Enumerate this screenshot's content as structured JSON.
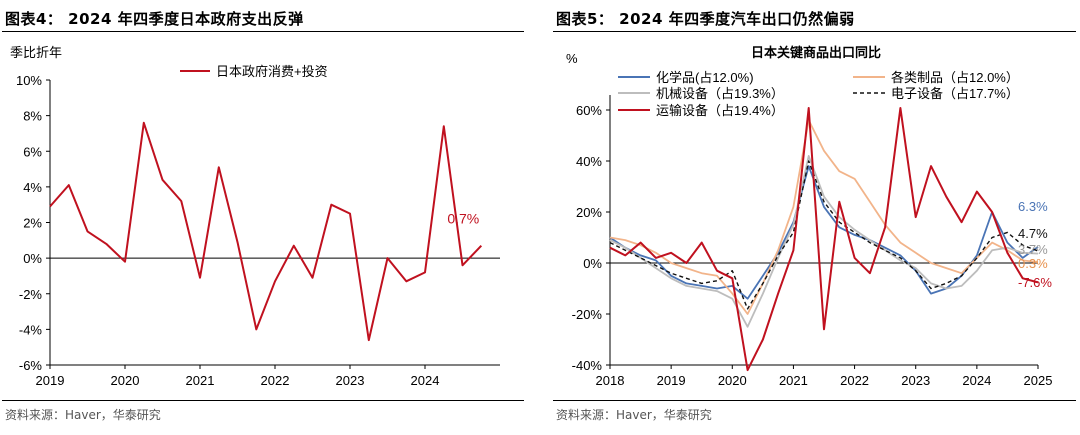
{
  "left": {
    "title": "图表4： 2024 年四季度日本政府支出反弹",
    "source": "资料来源：Haver，华泰研究",
    "chart_data": {
      "type": "line",
      "ylabel": "季比折年",
      "ylim": [
        -6,
        10
      ],
      "yticks": [
        "-6%",
        "-4%",
        "-2%",
        "0%",
        "2%",
        "4%",
        "6%",
        "8%",
        "10%"
      ],
      "xlim": [
        2019,
        2025
      ],
      "xticks": [
        "2019",
        "2020",
        "2021",
        "2022",
        "2023",
        "2024"
      ],
      "legend_position": "top-center",
      "annotation": "0.7%",
      "series": [
        {
          "name": "日本政府消费+投资",
          "color": "#c0111f",
          "x": [
            2019.0,
            2019.25,
            2019.5,
            2019.75,
            2020.0,
            2020.25,
            2020.5,
            2020.75,
            2021.0,
            2021.25,
            2021.5,
            2021.75,
            2022.0,
            2022.25,
            2022.5,
            2022.75,
            2023.0,
            2023.25,
            2023.5,
            2023.75,
            2024.0,
            2024.25,
            2024.5,
            2024.75
          ],
          "values": [
            2.9,
            4.1,
            1.5,
            0.8,
            -0.2,
            7.6,
            4.4,
            3.2,
            -1.1,
            5.1,
            0.9,
            -4.0,
            -1.3,
            0.7,
            -1.1,
            3.0,
            2.5,
            -4.6,
            0.0,
            -1.3,
            -0.8,
            7.4,
            -0.4,
            0.7
          ]
        }
      ]
    }
  },
  "right": {
    "title": "图表5： 2024 年四季度汽车出口仍然偏弱",
    "source": "资料来源：Haver，华泰研究",
    "chart_data": {
      "type": "line",
      "title": "日本关键商品出口同比",
      "ylabel": "%",
      "ylim": [
        -40,
        60
      ],
      "yticks": [
        "-40%",
        "-20%",
        "0%",
        "20%",
        "40%",
        "60%"
      ],
      "xlim": [
        2018,
        2025
      ],
      "xticks": [
        "2018",
        "2019",
        "2020",
        "2021",
        "2022",
        "2023",
        "2024",
        "2025"
      ],
      "legend_position": "top",
      "end_labels": [
        "6.3%",
        "4.7%",
        "3.7%",
        "0.3%",
        "-7.6%"
      ],
      "series": [
        {
          "name": "化学品(占12.0%)",
          "color": "#4a74b5",
          "x": [
            2018.0,
            2018.25,
            2018.5,
            2018.75,
            2019.0,
            2019.25,
            2019.5,
            2019.75,
            2020.0,
            2020.25,
            2020.5,
            2020.75,
            2021.0,
            2021.25,
            2021.5,
            2021.75,
            2022.0,
            2022.25,
            2022.5,
            2022.75,
            2023.0,
            2023.25,
            2023.5,
            2023.75,
            2024.0,
            2024.25,
            2024.5,
            2024.75,
            2025.0
          ],
          "values": [
            10,
            6,
            3,
            1,
            -5,
            -8,
            -9,
            -10,
            -9,
            -14,
            -5,
            4,
            16,
            38,
            22,
            14,
            11,
            9,
            6,
            3,
            -3,
            -12,
            -10,
            -5,
            3,
            20,
            8,
            2,
            6.3
          ]
        },
        {
          "name": "各类制品（占12.0%）",
          "color": "#f2b48a",
          "x": [
            2018.0,
            2018.25,
            2018.5,
            2018.75,
            2019.0,
            2019.25,
            2019.5,
            2019.75,
            2020.0,
            2020.25,
            2020.5,
            2020.75,
            2021.0,
            2021.25,
            2021.5,
            2021.75,
            2022.0,
            2022.25,
            2022.5,
            2022.75,
            2023.0,
            2023.25,
            2023.5,
            2023.75,
            2024.0,
            2024.25,
            2024.5,
            2024.75,
            2025.0
          ],
          "values": [
            10,
            9,
            7,
            4,
            0,
            -2,
            -4,
            -5,
            -12,
            -20,
            -8,
            5,
            22,
            56,
            44,
            36,
            33,
            24,
            15,
            8,
            4,
            0,
            -2,
            -4,
            2,
            8,
            5,
            1,
            0.3
          ]
        },
        {
          "name": "机械设备（占19.3%）",
          "color": "#bdbdbd",
          "x": [
            2018.0,
            2018.25,
            2018.5,
            2018.75,
            2019.0,
            2019.25,
            2019.5,
            2019.75,
            2020.0,
            2020.25,
            2020.5,
            2020.75,
            2021.0,
            2021.25,
            2021.5,
            2021.75,
            2022.0,
            2022.25,
            2022.5,
            2022.75,
            2023.0,
            2023.25,
            2023.5,
            2023.75,
            2024.0,
            2024.25,
            2024.5,
            2024.75,
            2025.0
          ],
          "values": [
            9,
            6,
            2,
            -2,
            -6,
            -9,
            -10,
            -11,
            -14,
            -25,
            -12,
            2,
            15,
            42,
            26,
            18,
            13,
            9,
            5,
            1,
            -2,
            -8,
            -10,
            -9,
            -3,
            5,
            6,
            4,
            3.7
          ]
        },
        {
          "name": "电子设备（占17.7%）",
          "color": "#111111",
          "x": [
            2018.0,
            2018.25,
            2018.5,
            2018.75,
            2019.0,
            2019.25,
            2019.5,
            2019.75,
            2020.0,
            2020.25,
            2020.5,
            2020.75,
            2021.0,
            2021.25,
            2021.5,
            2021.75,
            2022.0,
            2022.25,
            2022.5,
            2022.75,
            2023.0,
            2023.25,
            2023.5,
            2023.75,
            2024.0,
            2024.25,
            2024.5,
            2024.75,
            2025.0
          ],
          "values": [
            8,
            5,
            2,
            -1,
            -4,
            -6,
            -8,
            -7,
            -3,
            -18,
            -8,
            3,
            12,
            40,
            24,
            16,
            12,
            8,
            5,
            2,
            -3,
            -10,
            -8,
            -5,
            2,
            10,
            12,
            7,
            4.7
          ]
        },
        {
          "name": "运输设备（占19.4%）",
          "color": "#c0111f",
          "x": [
            2018.0,
            2018.25,
            2018.5,
            2018.75,
            2019.0,
            2019.25,
            2019.5,
            2019.75,
            2020.0,
            2020.25,
            2020.5,
            2020.75,
            2021.0,
            2021.25,
            2021.5,
            2021.75,
            2022.0,
            2022.25,
            2022.5,
            2022.75,
            2023.0,
            2023.25,
            2023.5,
            2023.75,
            2024.0,
            2024.25,
            2024.5,
            2024.75,
            2025.0
          ],
          "values": [
            6,
            3,
            8,
            2,
            4,
            0,
            8,
            -3,
            -6,
            -42,
            -30,
            -12,
            5,
            62,
            -26,
            24,
            2,
            -4,
            14,
            62,
            18,
            38,
            26,
            16,
            28,
            20,
            4,
            -6,
            -7.6
          ]
        }
      ]
    }
  }
}
